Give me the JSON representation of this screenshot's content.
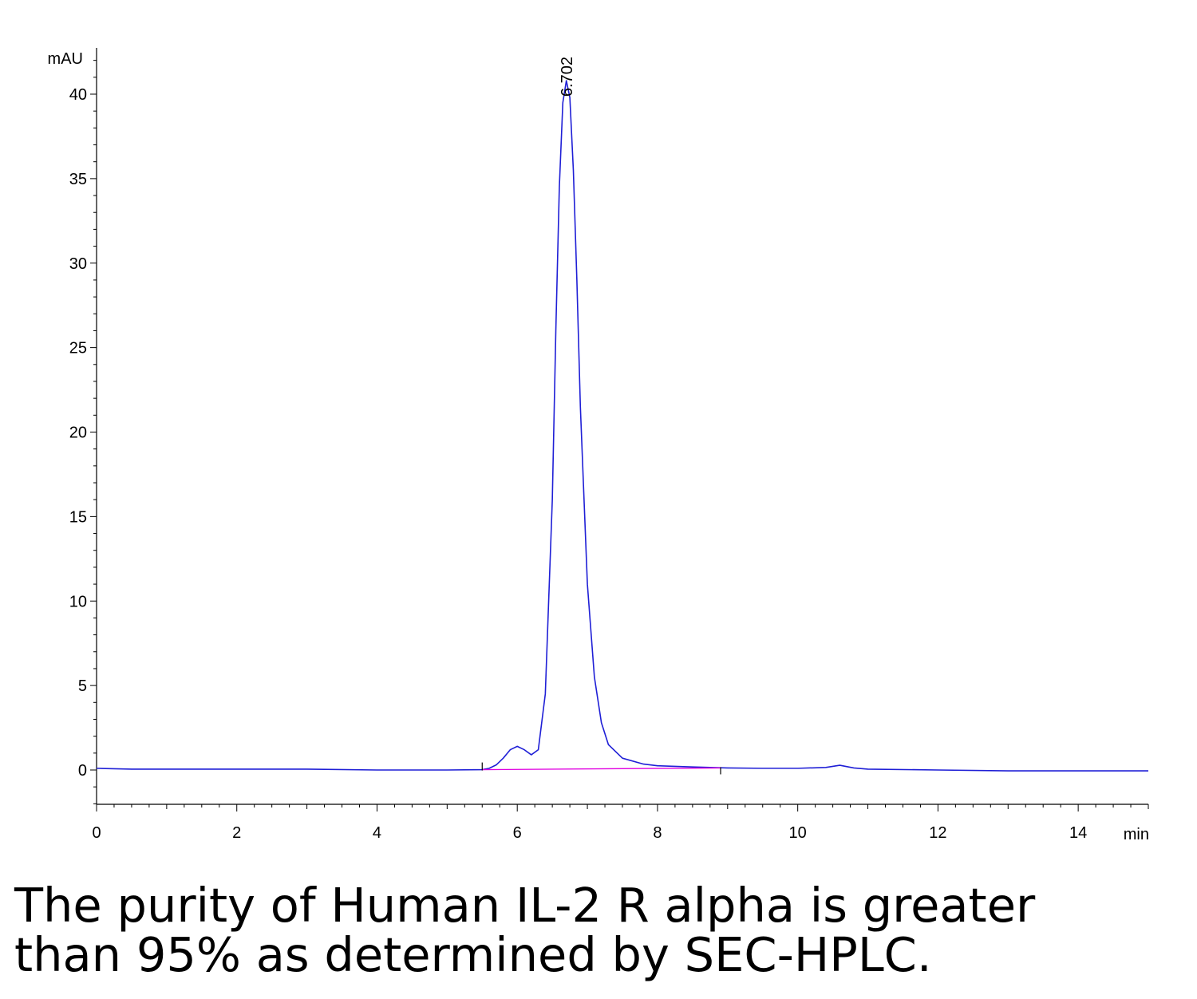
{
  "chart_data": {
    "type": "line",
    "title": "",
    "ylabel": "mAU",
    "xlabel": "min",
    "xlim": [
      0,
      15
    ],
    "ylim": [
      -2,
      42
    ],
    "x_ticks": [
      0,
      2,
      4,
      6,
      8,
      10,
      12,
      14
    ],
    "y_ticks": [
      0,
      5,
      10,
      15,
      20,
      25,
      30,
      35,
      40
    ],
    "x_tick_labels": [
      "0",
      "2",
      "4",
      "6",
      "8",
      "10",
      "12",
      "14"
    ],
    "y_tick_labels": [
      "0",
      "5",
      "10",
      "15",
      "20",
      "25",
      "30",
      "35",
      "40"
    ],
    "peak_label": {
      "text": "6.702",
      "x": 6.702,
      "y": 40.8
    },
    "series": [
      {
        "color": "#1f1fd6",
        "x": [
          0,
          0.5,
          1,
          2,
          3,
          4,
          5,
          5.5,
          5.6,
          5.7,
          5.8,
          5.9,
          6.0,
          6.1,
          6.2,
          6.3,
          6.4,
          6.5,
          6.55,
          6.6,
          6.65,
          6.7,
          6.75,
          6.8,
          6.85,
          6.9,
          7.0,
          7.1,
          7.2,
          7.3,
          7.5,
          7.8,
          8.0,
          8.5,
          9.0,
          9.5,
          10.0,
          10.4,
          10.6,
          10.8,
          11.0,
          12.0,
          13.0,
          14.0,
          15.0
        ],
        "y": [
          0.1,
          0.05,
          0.05,
          0.05,
          0.05,
          0.0,
          0.0,
          0.02,
          0.1,
          0.3,
          0.7,
          1.2,
          1.4,
          1.2,
          0.9,
          1.2,
          4.5,
          16.0,
          26.0,
          34.5,
          39.5,
          40.8,
          39.8,
          35.5,
          29.0,
          21.5,
          11.0,
          5.5,
          2.8,
          1.5,
          0.7,
          0.35,
          0.25,
          0.18,
          0.12,
          0.1,
          0.1,
          0.15,
          0.28,
          0.12,
          0.05,
          0.0,
          -0.05,
          -0.05,
          -0.05
        ]
      },
      {
        "color": "#e000e0",
        "x": [
          5.5,
          8.9
        ],
        "y": [
          0.02,
          0.12
        ]
      }
    ],
    "grid": false,
    "legend": "none"
  },
  "caption": {
    "line1": "The purity of Human IL-2 R alpha is greater",
    "line2": "than 95% as determined by SEC-HPLC."
  },
  "colors": {
    "signal": "#1f1fd6",
    "baseline": "#e000e0",
    "axis": "#000000"
  }
}
